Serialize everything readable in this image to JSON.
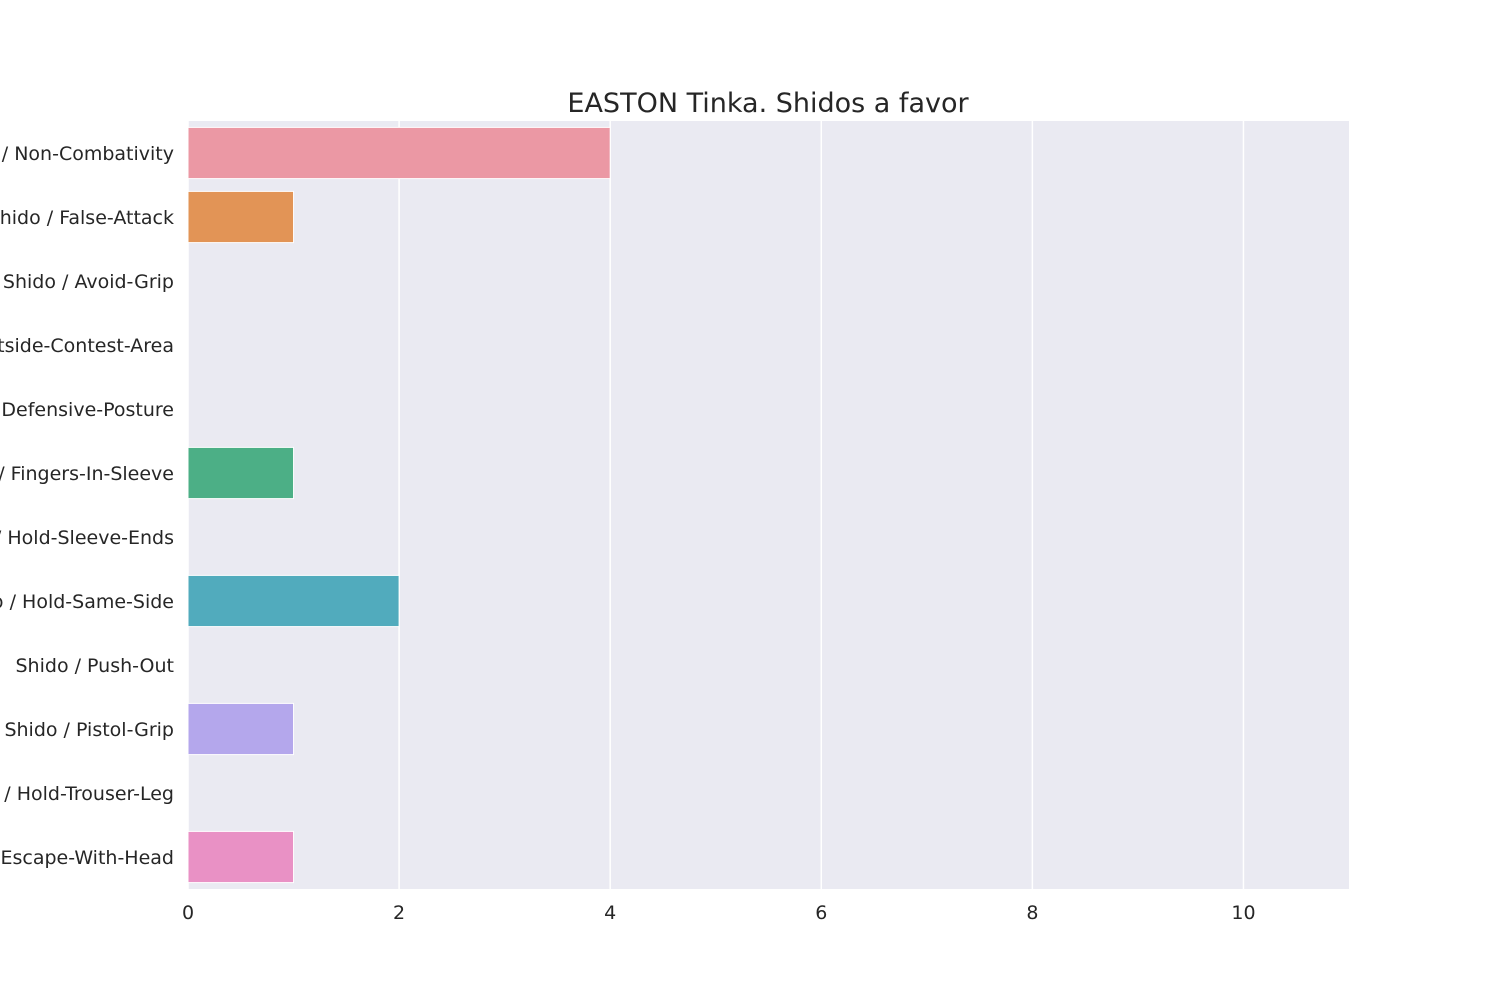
{
  "chart_data": {
    "type": "bar",
    "orientation": "horizontal",
    "title": "EASTON Tinka. Shidos a favor",
    "xlabel": "",
    "ylabel": "",
    "xlim": [
      0,
      11
    ],
    "xticks": [
      0,
      2,
      4,
      6,
      8,
      10
    ],
    "grid": true,
    "categories": [
      "Shido / Non-Combativity",
      "Shido / False-Attack",
      "Shido / Avoid-Grip",
      "Shido / Outside-Contest-Area",
      "Shido / Defensive-Posture",
      "Shido / Fingers-In-Sleeve",
      "Shido / Hold-Sleeve-Ends",
      "Shido / Hold-Same-Side",
      "Shido / Push-Out",
      "Shido / Pistol-Grip",
      "Shido / Hold-Trouser-Leg",
      "Shido / Escape-With-Head"
    ],
    "values": [
      4,
      1,
      0,
      0,
      0,
      1,
      0,
      2,
      0,
      1,
      0,
      1
    ],
    "colors": [
      "#eb98a4",
      "#e29456",
      "#c3a34f",
      "#a8ab4f",
      "#7db652",
      "#4caf86",
      "#4fae9e",
      "#51abbd",
      "#5aa8d6",
      "#b4a7ec",
      "#d98fe4",
      "#e991c5"
    ]
  }
}
